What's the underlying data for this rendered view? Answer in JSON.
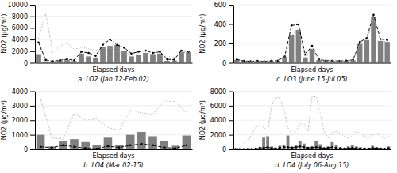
{
  "chart_data": [
    {
      "type": "bar",
      "title": "a. LO2 (Jan 12-Feb 02)",
      "xlabel": "Elapsed days",
      "ylabel": "NO2 (μg/m³)",
      "ylim": [
        0,
        10000
      ],
      "yticks": [
        0,
        2000,
        4000,
        6000,
        8000,
        10000
      ],
      "grid": true,
      "tick_labels": "y",
      "series": [
        {
          "type": "bar",
          "color": "#7f7f7f",
          "values": [
            1500,
            250,
            200,
            350,
            450,
            300,
            1600,
            1100,
            900,
            2700,
            2900,
            3100,
            2100,
            1100,
            1400,
            1700,
            1500,
            1600,
            350,
            400,
            1900,
            1800
          ]
        },
        {
          "type": "line",
          "line_style": "dashed",
          "marker": "circle",
          "color": "#000000",
          "values": [
            3500,
            500,
            250,
            450,
            600,
            450,
            1900,
            1700,
            1200,
            3100,
            4000,
            3100,
            2600,
            1600,
            1900,
            2100,
            1700,
            1900,
            600,
            550,
            2100,
            1900
          ]
        },
        {
          "type": "line",
          "line_style": "dotted",
          "color": "#aaaaaa",
          "values": [
            4200,
            8500,
            1800,
            2900,
            3400,
            2300,
            2700,
            2400,
            2100,
            2400,
            2600,
            1900,
            1700,
            1400,
            1400,
            1300,
            1400,
            1300,
            1100,
            1000,
            1700,
            1900
          ]
        }
      ]
    },
    {
      "type": "bar",
      "title": "c. LO3 (June 15-Jul 05)",
      "xlabel": "Elapsed days",
      "ylabel": "NO2 (μg/m³)",
      "ylim": [
        0,
        600
      ],
      "yticks": [
        0,
        200,
        400,
        600
      ],
      "grid": true,
      "tick_labels": "y",
      "series": [
        {
          "type": "bar",
          "color": "#7f7f7f",
          "values": [
            30,
            20,
            15,
            20,
            15,
            20,
            20,
            60,
            290,
            340,
            55,
            145,
            30,
            20,
            20,
            15,
            20,
            25,
            195,
            235,
            470,
            225,
            215
          ]
        },
        {
          "type": "line",
          "line_style": "dashed",
          "marker": "circle",
          "color": "#000000",
          "values": [
            35,
            20,
            15,
            20,
            15,
            20,
            22,
            65,
            385,
            395,
            85,
            175,
            35,
            22,
            22,
            18,
            22,
            30,
            215,
            255,
            495,
            245,
            235
          ]
        },
        {
          "type": "line",
          "line_style": "dotted",
          "color": "#aaaaaa",
          "values": [
            30,
            20,
            15,
            20,
            15,
            20,
            20,
            60,
            290,
            340,
            55,
            145,
            30,
            20,
            20,
            15,
            20,
            25,
            195,
            235,
            470,
            225,
            215
          ]
        }
      ]
    },
    {
      "type": "bar",
      "title": "b. LO4 (Mar 02-15)",
      "xlabel": "Elapsed days",
      "ylabel": "NO2 (μg/m³)",
      "ylim": [
        0,
        4000
      ],
      "yticks": [
        0,
        1000,
        2000,
        3000,
        4000
      ],
      "grid": true,
      "tick_labels": "y",
      "series": [
        {
          "type": "bar",
          "color": "#7f7f7f",
          "values": [
            1000,
            200,
            600,
            700,
            500,
            300,
            800,
            300,
            1000,
            1200,
            900,
            600,
            250,
            950
          ]
        },
        {
          "type": "line",
          "line_style": "dashed",
          "marker": "circle",
          "color": "#000000",
          "values": [
            180,
            120,
            280,
            180,
            80,
            40,
            220,
            130,
            280,
            380,
            280,
            130,
            80,
            280
          ]
        },
        {
          "type": "line",
          "line_style": "dotted",
          "color": "#aaaaaa",
          "values": [
            3500,
            800,
            700,
            2500,
            2000,
            2100,
            1500,
            1300,
            2700,
            2500,
            2400,
            3300,
            3300,
            2500
          ]
        }
      ]
    },
    {
      "type": "bar",
      "title": "d. LO4 (July 06-Aug 15)",
      "xlabel": "Elapsed days",
      "ylabel": "NO2 (μg/m³)",
      "ylim": [
        0,
        8000
      ],
      "yticks": [
        0,
        2000,
        4000,
        6000,
        8000
      ],
      "grid": true,
      "tick_labels": "y",
      "series": [
        {
          "type": "bar",
          "color": "#7f7f7f",
          "values": [
            50,
            30,
            30,
            40,
            50,
            80,
            200,
            1600,
            1800,
            400,
            200,
            500,
            600,
            1900,
            400,
            600,
            1100,
            800,
            300,
            400,
            1200,
            700,
            200,
            400,
            1000,
            600,
            300,
            200,
            400,
            600,
            400,
            300,
            200,
            200,
            500,
            300,
            200,
            150,
            400
          ]
        },
        {
          "type": "line",
          "line_style": "dashed",
          "marker": "circle",
          "color": "#000000",
          "values": [
            50,
            30,
            30,
            40,
            60,
            90,
            220,
            200,
            300,
            150,
            120,
            200,
            300,
            300,
            200,
            300,
            400,
            300,
            200,
            250,
            300,
            250,
            150,
            200,
            300,
            200,
            150,
            100,
            150,
            200,
            150,
            100,
            100,
            100,
            200,
            150,
            100,
            80,
            150
          ]
        },
        {
          "type": "line",
          "line_style": "dotted",
          "color": "#aaaaaa",
          "values": [
            100,
            200,
            800,
            1200,
            2000,
            3000,
            3400,
            3000,
            2500,
            6000,
            7200,
            7100,
            5500,
            3000,
            2000,
            2500,
            3500,
            3500,
            2500,
            7300,
            7200,
            5000,
            2500,
            1500,
            2200,
            2500,
            2200,
            1800,
            1500,
            1800,
            2500,
            2200,
            1800,
            1500,
            2000,
            2200,
            1800,
            1500,
            1800
          ]
        }
      ]
    }
  ]
}
